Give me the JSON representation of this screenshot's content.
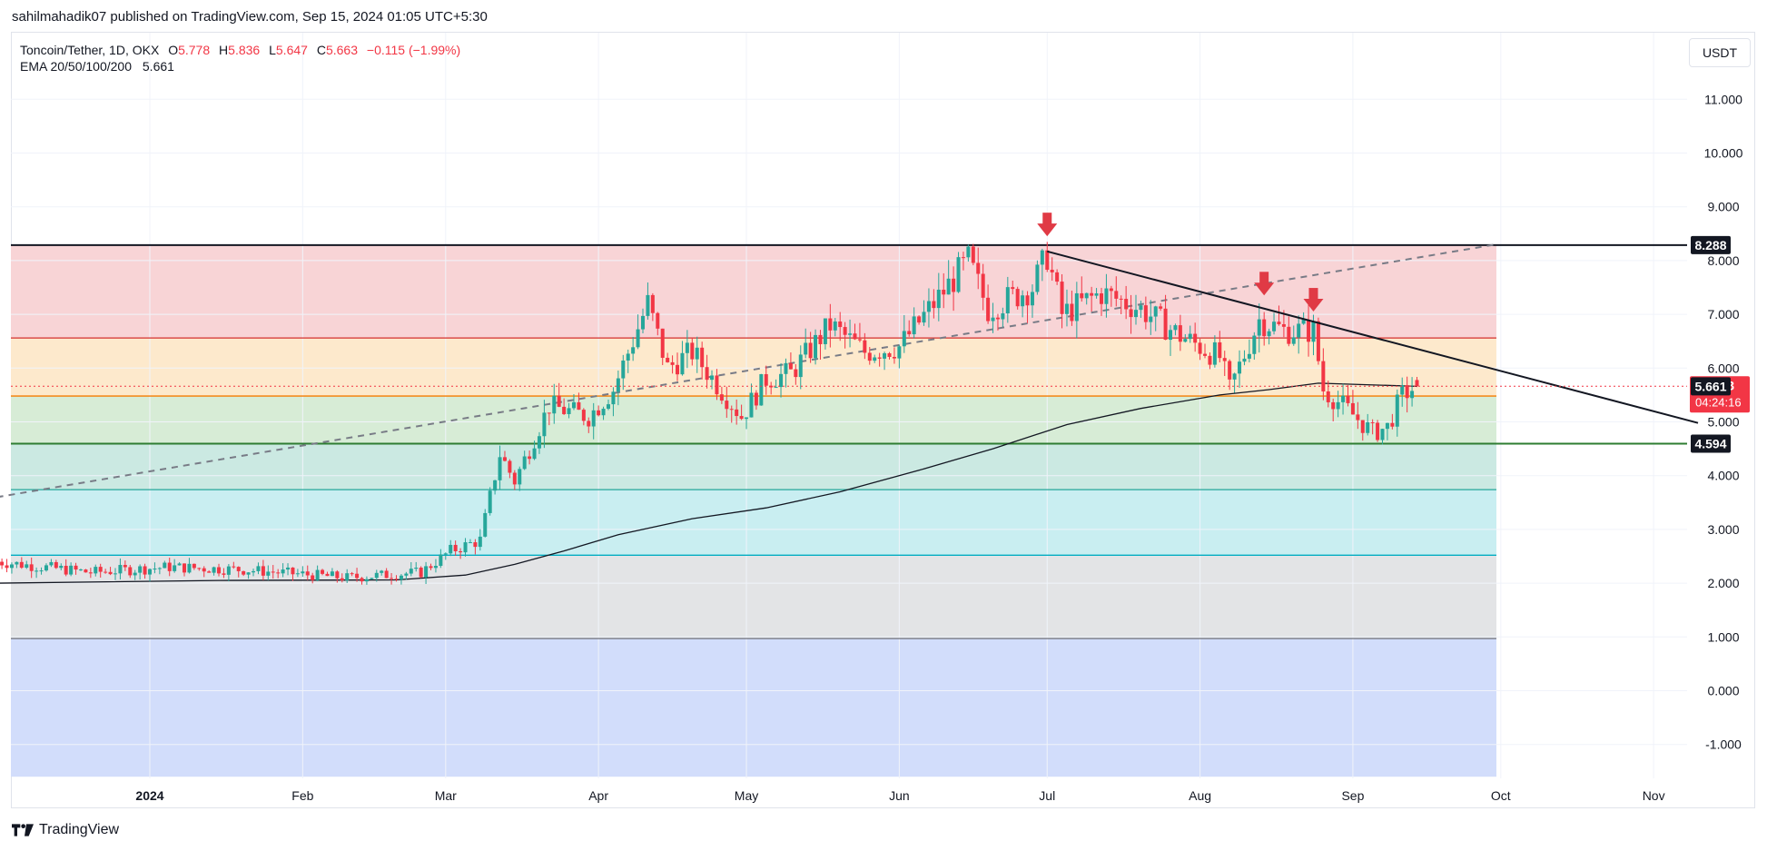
{
  "header": {
    "publisher_line": "sahilmahadik07 published on TradingView.com, Sep 15, 2024 01:05 UTC+5:30"
  },
  "legend": {
    "symbol": "Toncoin/Tether, 1D, OKX",
    "o_label": "O",
    "o_value": "5.778",
    "h_label": "H",
    "h_value": "5.836",
    "l_label": "L",
    "l_value": "5.647",
    "c_label": "C",
    "c_value": "5.663",
    "change": "−0.115 (−1.99%)",
    "ema_label": "EMA 20/50/100/200",
    "ema_value": "5.661"
  },
  "currency_button": "USDT",
  "footer": {
    "brand": "TradingView"
  },
  "colors": {
    "up": "#26a69a",
    "down": "#f23645",
    "zone_red": "#f8d4d6",
    "zone_orange": "#fde9cc",
    "zone_green": "#d7ecd6",
    "zone_teal": "#cbe9e2",
    "zone_cyan": "#c9eef1",
    "zone_gray": "#e3e4e6",
    "zone_blue": "#d2ddfb"
  },
  "chart_data": {
    "type": "candlestick",
    "title": "Toncoin/Tether, 1D, OKX",
    "ylim": [
      -1.6,
      11.8
    ],
    "y_ticks": [
      "-1.000",
      "0.000",
      "1.000",
      "2.000",
      "3.000",
      "4.000",
      "5.000",
      "6.000",
      "7.000",
      "8.000",
      "9.000",
      "10.000",
      "11.000"
    ],
    "x_labels": [
      "2024",
      "Feb",
      "Mar",
      "Apr",
      "May",
      "Jun",
      "Jul",
      "Aug",
      "Sep",
      "Oct",
      "Nov"
    ],
    "fib_levels": [
      8.288,
      6.56,
      5.48,
      4.594,
      3.74,
      2.52,
      0.97
    ],
    "price_labels": [
      {
        "value": 8.288,
        "text": "8.288",
        "style": "black"
      },
      {
        "value": 5.663,
        "text": "5.663",
        "style": "red"
      },
      {
        "value": 5.661,
        "text": "5.661",
        "style": "black"
      },
      {
        "value": 4.594,
        "text": "4.594",
        "style": "black"
      }
    ],
    "countdown": "04:24:16",
    "ema_200": [
      {
        "d": "2023-12-01",
        "v": 2.0
      },
      {
        "d": "2024-01-15",
        "v": 2.05
      },
      {
        "d": "2024-02-20",
        "v": 2.06
      },
      {
        "d": "2024-03-05",
        "v": 2.15
      },
      {
        "d": "2024-03-15",
        "v": 2.35
      },
      {
        "d": "2024-03-25",
        "v": 2.6
      },
      {
        "d": "2024-04-05",
        "v": 2.9
      },
      {
        "d": "2024-04-20",
        "v": 3.2
      },
      {
        "d": "2024-05-05",
        "v": 3.4
      },
      {
        "d": "2024-05-20",
        "v": 3.7
      },
      {
        "d": "2024-06-05",
        "v": 4.1
      },
      {
        "d": "2024-06-20",
        "v": 4.5
      },
      {
        "d": "2024-07-05",
        "v": 4.95
      },
      {
        "d": "2024-07-20",
        "v": 5.25
      },
      {
        "d": "2024-08-05",
        "v": 5.5
      },
      {
        "d": "2024-08-15",
        "v": 5.6
      },
      {
        "d": "2024-08-25",
        "v": 5.72
      },
      {
        "d": "2024-09-01",
        "v": 5.7
      },
      {
        "d": "2024-09-14",
        "v": 5.661
      }
    ],
    "resistance_line": {
      "from": {
        "d": "2024-07-01",
        "v": 8.17
      },
      "to": {
        "d": "2024-11-10",
        "v": 4.98
      }
    },
    "dashed_trendline": {
      "from": {
        "d": "2023-12-01",
        "v": 3.6
      },
      "to": {
        "d": "2024-09-30",
        "v": 8.3
      }
    },
    "arrows": [
      "2024-07-01",
      "2024-08-14",
      "2024-08-24"
    ],
    "anchors": [
      {
        "d": "2023-12-01",
        "v": 2.4
      },
      {
        "d": "2023-12-20",
        "v": 2.2
      },
      {
        "d": "2024-01-05",
        "v": 2.3
      },
      {
        "d": "2024-01-20",
        "v": 2.25
      },
      {
        "d": "2024-02-10",
        "v": 2.1
      },
      {
        "d": "2024-02-25",
        "v": 2.2
      },
      {
        "d": "2024-03-02",
        "v": 2.6
      },
      {
        "d": "2024-03-08",
        "v": 2.8
      },
      {
        "d": "2024-03-12",
        "v": 4.4
      },
      {
        "d": "2024-03-15",
        "v": 3.9
      },
      {
        "d": "2024-03-22",
        "v": 5.3
      },
      {
        "d": "2024-03-30",
        "v": 5.1
      },
      {
        "d": "2024-04-04",
        "v": 5.6
      },
      {
        "d": "2024-04-11",
        "v": 7.2
      },
      {
        "d": "2024-04-15",
        "v": 6.0
      },
      {
        "d": "2024-04-20",
        "v": 6.3
      },
      {
        "d": "2024-04-30",
        "v": 5.1
      },
      {
        "d": "2024-05-05",
        "v": 5.8
      },
      {
        "d": "2024-05-10",
        "v": 5.9
      },
      {
        "d": "2024-05-18",
        "v": 6.8
      },
      {
        "d": "2024-05-25",
        "v": 6.3
      },
      {
        "d": "2024-06-01",
        "v": 6.4
      },
      {
        "d": "2024-06-08",
        "v": 7.2
      },
      {
        "d": "2024-06-15",
        "v": 8.0
      },
      {
        "d": "2024-06-19",
        "v": 7.1
      },
      {
        "d": "2024-06-28",
        "v": 7.5
      },
      {
        "d": "2024-07-01",
        "v": 8.1
      },
      {
        "d": "2024-07-04",
        "v": 7.0
      },
      {
        "d": "2024-07-12",
        "v": 7.4
      },
      {
        "d": "2024-07-20",
        "v": 7.1
      },
      {
        "d": "2024-07-28",
        "v": 6.6
      },
      {
        "d": "2024-08-05",
        "v": 6.2
      },
      {
        "d": "2024-08-07",
        "v": 5.6
      },
      {
        "d": "2024-08-13",
        "v": 6.9
      },
      {
        "d": "2024-08-18",
        "v": 6.7
      },
      {
        "d": "2024-08-24",
        "v": 6.7
      },
      {
        "d": "2024-08-26",
        "v": 5.6
      },
      {
        "d": "2024-08-30",
        "v": 5.3
      },
      {
        "d": "2024-09-05",
        "v": 4.8
      },
      {
        "d": "2024-09-08",
        "v": 4.9
      },
      {
        "d": "2024-09-11",
        "v": 5.5
      },
      {
        "d": "2024-09-14",
        "v": 5.663
      }
    ]
  }
}
